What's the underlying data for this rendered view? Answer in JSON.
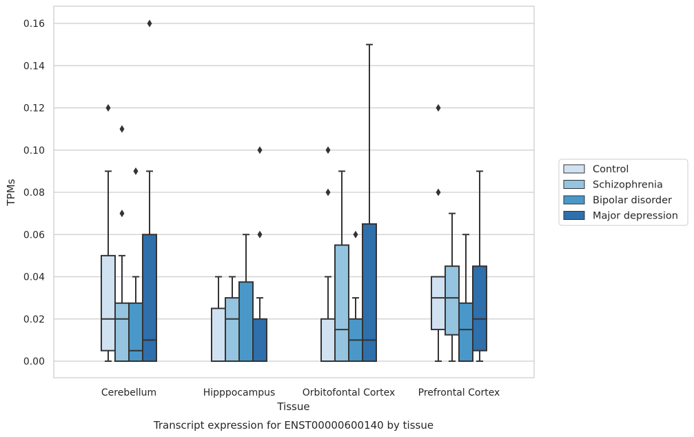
{
  "chart_data": {
    "type": "boxplot",
    "title": "",
    "xlabel": "Tissue",
    "ylabel": "TPMs",
    "caption": "Transcript expression for ENST00000600140 by tissue",
    "ylim": [
      -0.008,
      0.168
    ],
    "yticks": [
      0.0,
      0.02,
      0.04,
      0.06,
      0.08,
      0.1,
      0.12,
      0.14,
      0.16
    ],
    "ytick_labels": [
      "0.00",
      "0.02",
      "0.04",
      "0.06",
      "0.08",
      "0.10",
      "0.12",
      "0.14",
      "0.16"
    ],
    "grid": "horizontal",
    "legend_position": "right",
    "categories": [
      "Cerebellum",
      "Hipppocampus",
      "Orbitofontal Cortex",
      "Prefrontal Cortex"
    ],
    "series": [
      {
        "name": "Control",
        "color": "#d0e1f2",
        "boxes": [
          {
            "whisker_low": 0.0,
            "q1": 0.005,
            "median": 0.02,
            "q3": 0.05,
            "whisker_high": 0.09,
            "outliers": [
              0.12
            ]
          },
          {
            "whisker_low": 0.0,
            "q1": 0.0,
            "median": 0.0,
            "q3": 0.025,
            "whisker_high": 0.04,
            "outliers": []
          },
          {
            "whisker_low": 0.0,
            "q1": 0.0,
            "median": 0.0,
            "q3": 0.02,
            "whisker_high": 0.04,
            "outliers": [
              0.08,
              0.1
            ]
          },
          {
            "whisker_low": 0.0,
            "q1": 0.015,
            "median": 0.03,
            "q3": 0.04,
            "whisker_high": 0.04,
            "outliers": [
              0.08,
              0.12
            ]
          }
        ]
      },
      {
        "name": "Schizophrenia",
        "color": "#94c4df",
        "boxes": [
          {
            "whisker_low": 0.0,
            "q1": 0.0,
            "median": 0.02,
            "q3": 0.0275,
            "whisker_high": 0.05,
            "outliers": [
              0.07,
              0.11
            ]
          },
          {
            "whisker_low": 0.0,
            "q1": 0.0,
            "median": 0.02,
            "q3": 0.03,
            "whisker_high": 0.04,
            "outliers": []
          },
          {
            "whisker_low": 0.0,
            "q1": 0.0,
            "median": 0.015,
            "q3": 0.055,
            "whisker_high": 0.09,
            "outliers": []
          },
          {
            "whisker_low": 0.0,
            "q1": 0.0125,
            "median": 0.03,
            "q3": 0.045,
            "whisker_high": 0.07,
            "outliers": []
          }
        ]
      },
      {
        "name": "Bipolar disorder",
        "color": "#4a98c9",
        "boxes": [
          {
            "whisker_low": 0.0,
            "q1": 0.0,
            "median": 0.005,
            "q3": 0.0275,
            "whisker_high": 0.04,
            "outliers": [
              0.09
            ]
          },
          {
            "whisker_low": 0.0,
            "q1": 0.0,
            "median": 0.0,
            "q3": 0.0375,
            "whisker_high": 0.06,
            "outliers": []
          },
          {
            "whisker_low": 0.0,
            "q1": 0.0,
            "median": 0.01,
            "q3": 0.02,
            "whisker_high": 0.03,
            "outliers": [
              0.06
            ]
          },
          {
            "whisker_low": 0.0,
            "q1": 0.0,
            "median": 0.015,
            "q3": 0.0275,
            "whisker_high": 0.06,
            "outliers": []
          }
        ]
      },
      {
        "name": "Major depression",
        "color": "#2e6fac",
        "boxes": [
          {
            "whisker_low": 0.0,
            "q1": 0.0,
            "median": 0.01,
            "q3": 0.06,
            "whisker_high": 0.09,
            "outliers": [
              0.16
            ]
          },
          {
            "whisker_low": 0.0,
            "q1": 0.0,
            "median": 0.0,
            "q3": 0.02,
            "whisker_high": 0.03,
            "outliers": [
              0.06,
              0.1
            ]
          },
          {
            "whisker_low": 0.0,
            "q1": 0.0,
            "median": 0.01,
            "q3": 0.065,
            "whisker_high": 0.15,
            "outliers": []
          },
          {
            "whisker_low": 0.0,
            "q1": 0.005,
            "median": 0.02,
            "q3": 0.045,
            "whisker_high": 0.09,
            "outliers": []
          }
        ]
      }
    ]
  }
}
